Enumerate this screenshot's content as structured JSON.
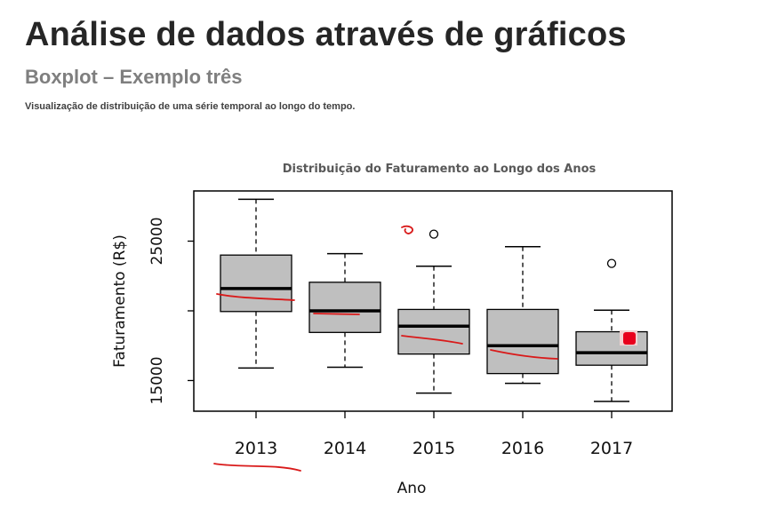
{
  "header": {
    "title": "Análise de dados através de gráficos",
    "subtitle": "Boxplot – Exemplo três",
    "caption": "Visualização de distribuição de uma série temporal ao longo do tempo."
  },
  "chart_data": {
    "type": "boxplot",
    "title": "Distribuição do Faturamento ao Longo dos Anos",
    "xlabel": "Ano",
    "ylabel": "Faturamento (R$)",
    "ylim": [
      12800,
      28600
    ],
    "yticks": [
      15000,
      20000,
      25000
    ],
    "ytick_labels": [
      "15000",
      "",
      "25000"
    ],
    "categories": [
      "2013",
      "2014",
      "2015",
      "2016",
      "2017"
    ],
    "boxes": [
      {
        "year": "2013",
        "min": 15900,
        "q1": 19950,
        "median": 21600,
        "q3": 24000,
        "max": 28000,
        "outliers": []
      },
      {
        "year": "2014",
        "min": 15950,
        "q1": 18450,
        "median": 20000,
        "q3": 22050,
        "max": 24100,
        "outliers": []
      },
      {
        "year": "2015",
        "min": 14100,
        "q1": 16900,
        "median": 18900,
        "q3": 20100,
        "max": 23200,
        "outliers": [
          25500
        ]
      },
      {
        "year": "2016",
        "min": 14800,
        "q1": 15500,
        "median": 17500,
        "q3": 20100,
        "max": 24600,
        "outliers": []
      },
      {
        "year": "2017",
        "min": 13500,
        "q1": 16100,
        "median": 17000,
        "q3": 18500,
        "max": 20050,
        "outliers": [
          23400
        ]
      }
    ],
    "colors": {
      "box_fill": "#bfbfbf",
      "median": "#000000",
      "annotation": "#d91a1a"
    }
  }
}
